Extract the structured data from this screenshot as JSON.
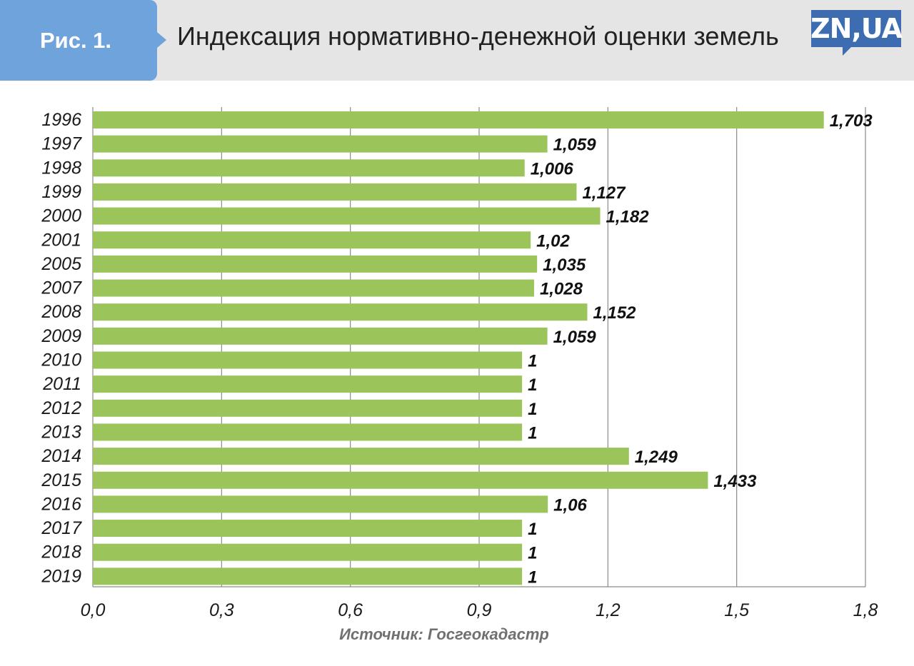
{
  "header": {
    "figure_label": "Рис. 1.",
    "title": "Индексация нормативно-денежной оценки земель",
    "logo_text": "ZN,UA"
  },
  "source": "Источник: Госгеокадастр",
  "colors": {
    "bar": "#9bc45a",
    "badge": "#6fa3dc",
    "logo": "#3d6db0",
    "header_bg": "#e5e5e5",
    "grid": "#8a8a8a"
  },
  "chart_data": {
    "type": "bar",
    "orientation": "horizontal",
    "title": "Индексация нормативно-денежной оценки земель",
    "xlabel": "",
    "ylabel": "",
    "xlim": [
      0,
      1.8
    ],
    "x_ticks": [
      "0,0",
      "0,3",
      "0,6",
      "0,9",
      "1,2",
      "1,5",
      "1,8"
    ],
    "x_tick_values": [
      0,
      0.3,
      0.6,
      0.9,
      1.2,
      1.5,
      1.8
    ],
    "grid": true,
    "categories": [
      "1996",
      "1997",
      "1998",
      "1999",
      "2000",
      "2001",
      "2005",
      "2007",
      "2008",
      "2009",
      "2010",
      "2011",
      "2012",
      "2013",
      "2014",
      "2015",
      "2016",
      "2017",
      "2018",
      "2019"
    ],
    "values": [
      1.703,
      1.059,
      1.006,
      1.127,
      1.182,
      1.02,
      1.035,
      1.028,
      1.152,
      1.059,
      1,
      1,
      1,
      1,
      1.249,
      1.433,
      1.06,
      1,
      1,
      1
    ],
    "labels": [
      "1,703",
      "1,059",
      "1,006",
      "1,127",
      "1,182",
      "1,02",
      "1,035",
      "1,028",
      "1,152",
      "1,059",
      "1",
      "1",
      "1",
      "1",
      "1,249",
      "1,433",
      "1,06",
      "1",
      "1",
      "1"
    ]
  }
}
